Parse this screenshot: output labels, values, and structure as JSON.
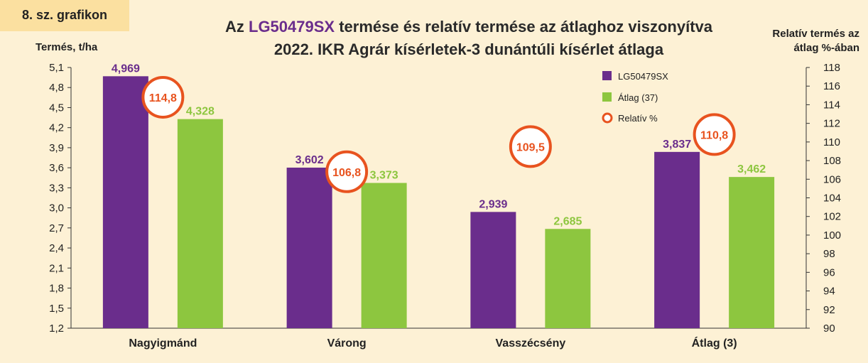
{
  "badge": "8. sz. grafikon",
  "title": {
    "line1_pre": "Az ",
    "line1_hl": "LG50479SX",
    "line1_post": " termése  és relatív termése az átlaghoz viszonyítva",
    "line2": "2022. IKR Agrár kísérletek-3 dunántúli kísérlet átlaga"
  },
  "colors": {
    "hybrid": "#6a2d8c",
    "average": "#8dc63f",
    "relative": "#e8531f",
    "background": "#fdf1d5"
  },
  "chart_data": {
    "type": "bar",
    "categories": [
      "Nagyigmánd",
      "Várong",
      "Vasszécsény",
      "Átlag (3)"
    ],
    "series": [
      {
        "name": "LG50479SX",
        "values": [
          4.969,
          3.602,
          2.939,
          3.837
        ],
        "labels": [
          "4,969",
          "3,602",
          "2,939",
          "3,837"
        ]
      },
      {
        "name": "Átlag (37)",
        "values": [
          4.328,
          3.373,
          2.685,
          3.462
        ],
        "labels": [
          "4,328",
          "3,373",
          "2,685",
          "3,462"
        ]
      }
    ],
    "relative": {
      "name": "Relatív %",
      "values": [
        114.8,
        106.8,
        109.5,
        110.8
      ],
      "labels": [
        "114,8",
        "106,8",
        "109,5",
        "110,8"
      ]
    },
    "ylabel": "Termés, t/ha",
    "y2label_line1": "Relatív termés az",
    "y2label_line2": "átlag %-ában",
    "ylim": [
      1.2,
      5.1
    ],
    "y2lim": [
      90,
      118
    ],
    "yticks": [
      "5,1",
      "4,8",
      "4,5",
      "4,2",
      "3,9",
      "3,6",
      "3,3",
      "3,0",
      "2,7",
      "2,4",
      "2,1",
      "1,8",
      "1,5",
      "1,2"
    ],
    "y2ticks": [
      "118",
      "116",
      "114",
      "112",
      "110",
      "108",
      "106",
      "104",
      "102",
      "100",
      "98",
      "96",
      "94",
      "92",
      "90"
    ],
    "legend_position": "top-right",
    "grid": false
  }
}
